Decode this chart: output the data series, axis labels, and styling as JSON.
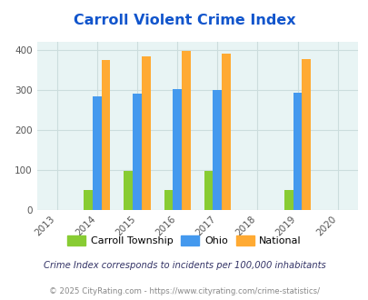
{
  "title": "Carroll Violent Crime Index",
  "years": [
    2013,
    2014,
    2015,
    2016,
    2017,
    2018,
    2019,
    2020
  ],
  "bar_years": [
    2014,
    2015,
    2016,
    2017,
    2019
  ],
  "carroll": [
    50,
    97,
    50,
    97,
    50
  ],
  "ohio": [
    285,
    291,
    302,
    300,
    293
  ],
  "national": [
    376,
    384,
    398,
    392,
    377
  ],
  "carroll_color": "#88cc33",
  "ohio_color": "#4499ee",
  "national_color": "#ffaa33",
  "bg_color": "#e8f4f4",
  "ylim": [
    0,
    420
  ],
  "yticks": [
    0,
    100,
    200,
    300,
    400
  ],
  "legend_labels": [
    "Carroll Township",
    "Ohio",
    "National"
  ],
  "footnote1": "Crime Index corresponds to incidents per 100,000 inhabitants",
  "footnote2": "© 2025 CityRating.com - https://www.cityrating.com/crime-statistics/",
  "title_color": "#1155cc",
  "footnote1_color": "#333366",
  "footnote2_color": "#888888",
  "bar_width": 0.22,
  "grid_color": "#ccdddd"
}
